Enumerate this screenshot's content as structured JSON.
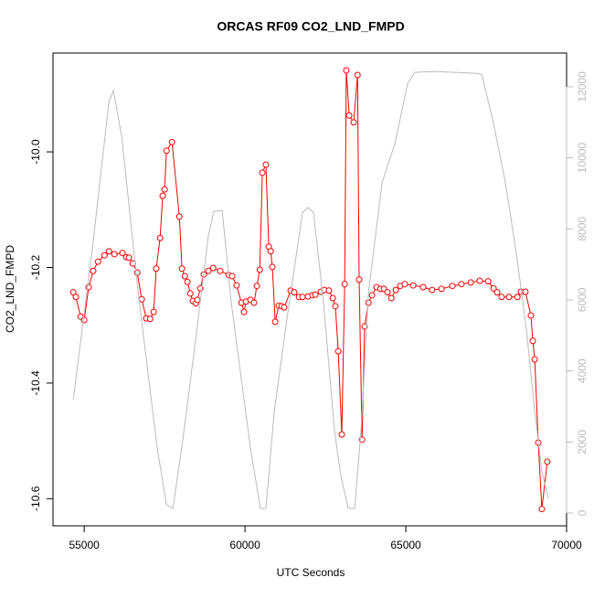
{
  "chart_data": {
    "type": "line",
    "title": "ORCAS RF09 CO2_LND_FMPD",
    "x_label": "UTC Seconds",
    "y_label": "CO2_LND_FMPD",
    "xlim": [
      54030,
      70000
    ],
    "xticks": [
      55000,
      60000,
      65000,
      70000
    ],
    "ylim": [
      -10.647,
      -9.829
    ],
    "yticks": [
      {
        "value": -10,
        "label": "-10.0"
      },
      -10.2,
      -10.4,
      -10.6
    ],
    "y2lim": [
      -360,
      12950
    ],
    "y2ticks": [
      0,
      2000,
      4000,
      6000,
      8000,
      10000,
      12000
    ],
    "y2_color": "#bbbbbb",
    "series": [
      {
        "color": "#ff0000",
        "marker": "circle",
        "x": [
          54660,
          54740,
          54890,
          55000,
          55140,
          55280,
          55430,
          55630,
          55770,
          55940,
          56190,
          56310,
          56390,
          56510,
          56650,
          56790,
          56930,
          57050,
          57160,
          57240,
          57360,
          57440,
          57500,
          57560,
          57730,
          57960,
          58040,
          58130,
          58210,
          58300,
          58380,
          58470,
          58520,
          58610,
          58720,
          58860,
          59010,
          59230,
          59490,
          59600,
          59740,
          59890,
          59970,
          60030,
          60170,
          60280,
          60370,
          60460,
          60540,
          60650,
          60740,
          60800,
          60850,
          60940,
          61050,
          61140,
          61220,
          61420,
          61530,
          61680,
          61790,
          61960,
          62100,
          62190,
          62360,
          62470,
          62610,
          62730,
          62810,
          62900,
          63010,
          63100,
          63150,
          63240,
          63380,
          63500,
          63550,
          63640,
          63720,
          63840,
          63950,
          64090,
          64210,
          64320,
          64430,
          64550,
          64690,
          64830,
          64970,
          65230,
          65540,
          65820,
          66110,
          66450,
          66730,
          67020,
          67300,
          67560,
          67730,
          67840,
          67980,
          68210,
          68470,
          68580,
          68720,
          68890,
          68950,
          69010,
          69120,
          69230,
          69400
        ],
        "values": [
          -10.243,
          -10.251,
          -10.285,
          -10.291,
          -10.234,
          -10.206,
          -10.19,
          -10.179,
          -10.172,
          -10.177,
          -10.175,
          -10.182,
          -10.183,
          -10.193,
          -10.209,
          -10.255,
          -10.288,
          -10.289,
          -10.277,
          -10.202,
          -10.149,
          -10.076,
          -10.065,
          -9.998,
          -9.983,
          -10.112,
          -10.202,
          -10.215,
          -10.225,
          -10.245,
          -10.258,
          -10.262,
          -10.256,
          -10.236,
          -10.212,
          -10.206,
          -10.201,
          -10.206,
          -10.213,
          -10.215,
          -10.231,
          -10.261,
          -10.277,
          -10.259,
          -10.256,
          -10.261,
          -10.232,
          -10.204,
          -10.036,
          -10.022,
          -10.164,
          -10.172,
          -10.199,
          -10.294,
          -10.266,
          -10.267,
          -10.269,
          -10.24,
          -10.243,
          -10.251,
          -10.251,
          -10.25,
          -10.248,
          -10.247,
          -10.242,
          -10.239,
          -10.24,
          -10.253,
          -10.267,
          -10.345,
          -10.489,
          -10.229,
          -9.859,
          -9.937,
          -9.949,
          -9.867,
          -10.221,
          -10.498,
          -10.302,
          -10.261,
          -10.248,
          -10.234,
          -10.237,
          -10.237,
          -10.243,
          -10.253,
          -10.239,
          -10.232,
          -10.229,
          -10.231,
          -10.234,
          -10.239,
          -10.237,
          -10.232,
          -10.229,
          -10.226,
          -10.223,
          -10.224,
          -10.236,
          -10.243,
          -10.251,
          -10.251,
          -10.251,
          -10.242,
          -10.242,
          -10.283,
          -10.327,
          -10.359,
          -10.503,
          -10.618,
          -10.536
        ]
      },
      {
        "color": "#bbbbbb",
        "axis": "y2",
        "x": [
          54660,
          55260,
          55770,
          55910,
          56170,
          56680,
          57270,
          57560,
          57760,
          58070,
          58470,
          58860,
          59030,
          59290,
          59570,
          60170,
          60480,
          60650,
          60910,
          61340,
          61790,
          61960,
          62130,
          62440,
          62780,
          62980,
          63210,
          63410,
          63610,
          63840,
          64260,
          64660,
          65060,
          65280,
          65850,
          67160,
          67360,
          67730,
          68100,
          68470,
          68750,
          68980,
          69230,
          69430
        ],
        "values": [
          3192,
          7490,
          11583,
          11892,
          10579,
          6203,
          1828,
          232,
          129,
          2085,
          4916,
          7799,
          8494,
          8520,
          5946,
          1828,
          129,
          129,
          2857,
          5689,
          8469,
          8597,
          8469,
          5946,
          2342,
          1055,
          129,
          129,
          2342,
          6203,
          9292,
          10399,
          12098,
          12407,
          12432,
          12381,
          12355,
          10965,
          9292,
          7104,
          5174,
          3114,
          1184,
          412
        ]
      }
    ]
  }
}
